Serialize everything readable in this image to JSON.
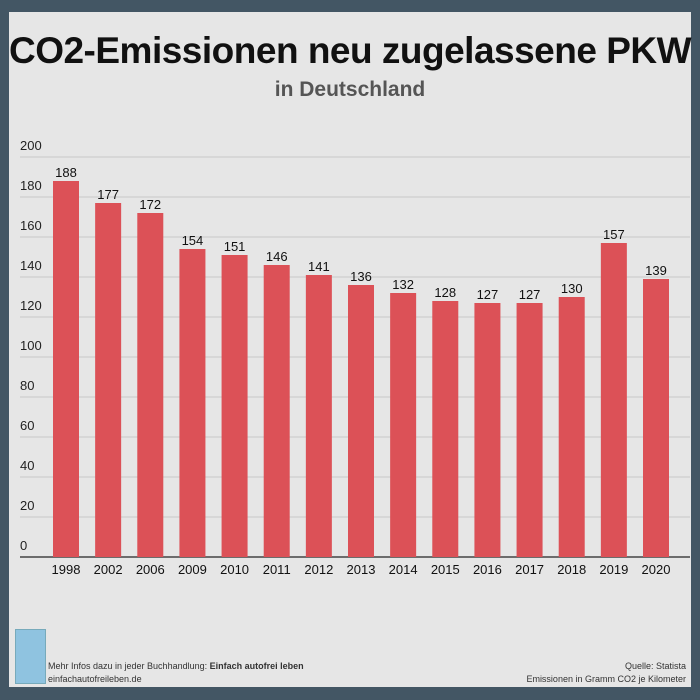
{
  "title": "CO2-Emissionen neu zugelassene PKW",
  "subtitle": "in Deutschland",
  "chart_data": {
    "type": "bar",
    "title": "CO2-Emissionen neu zugelassene PKW",
    "subtitle": "in Deutschland",
    "categories": [
      "1998",
      "2002",
      "2006",
      "2009",
      "2010",
      "2011",
      "2012",
      "2013",
      "2014",
      "2015",
      "2016",
      "2017",
      "2018",
      "2019",
      "2020"
    ],
    "values": [
      188,
      177,
      172,
      154,
      151,
      146,
      141,
      136,
      132,
      128,
      127,
      127,
      130,
      157,
      139
    ],
    "ylim": [
      0,
      200
    ],
    "yticks": [
      0,
      20,
      40,
      60,
      80,
      100,
      120,
      140,
      160,
      180,
      200
    ],
    "grid": true,
    "bar_color": "#dc5157",
    "xlabel": "",
    "ylabel": ""
  },
  "footer": {
    "info_prefix": "Mehr Infos dazu in jeder Buchhandlung: ",
    "info_book": "Einfach autofrei leben",
    "website": "einfachautofreileben.de",
    "source": "Quelle: Statista",
    "unit_note": "Emissionen in Gramm CO2 je Kilometer"
  },
  "colors": {
    "background": "#435664",
    "card": "#e6e6e6",
    "bar": "#dc5157"
  }
}
